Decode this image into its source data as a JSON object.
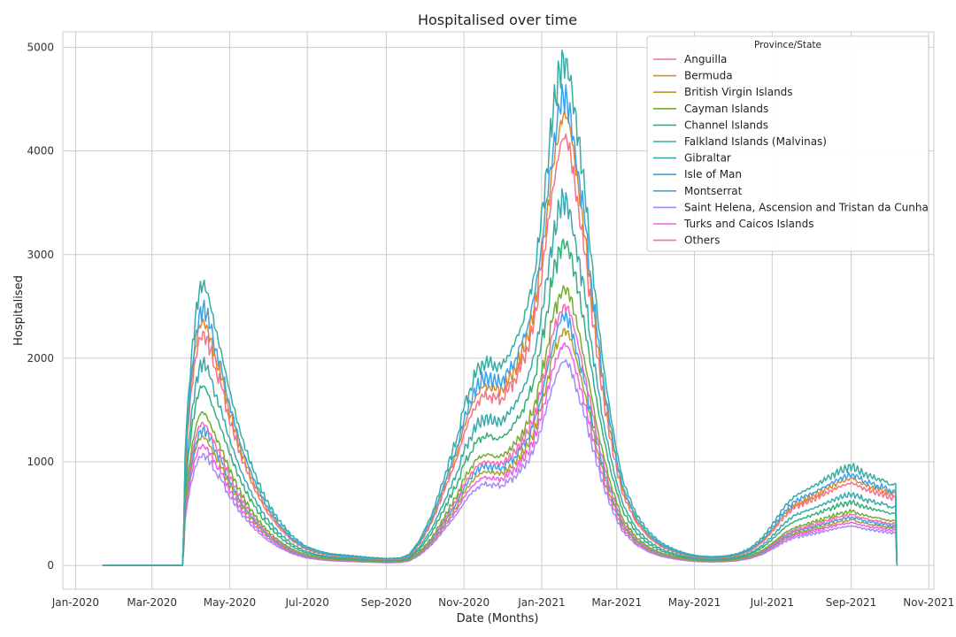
{
  "chart_data": {
    "type": "line",
    "title": "Hospitalised over time",
    "xlabel": "Date (Months)",
    "ylabel": "Hospitalised",
    "ylim": [
      -230,
      5150
    ],
    "yticks": [
      0,
      1000,
      2000,
      3000,
      4000,
      5000
    ],
    "x_tick_labels": [
      "Jan-2020",
      "Mar-2020",
      "May-2020",
      "Jul-2020",
      "Sep-2020",
      "Nov-2020",
      "Jan-2021",
      "Mar-2021",
      "May-2021",
      "Jul-2021",
      "Sep-2021",
      "Nov-2021"
    ],
    "x_tick_days": [
      0,
      60,
      121,
      182,
      244,
      305,
      366,
      425,
      486,
      547,
      609,
      670
    ],
    "xlim_days": [
      -10,
      674
    ],
    "grid": true,
    "legend": {
      "title": "Province/State",
      "position": "top-right"
    },
    "x_days": [
      21,
      84,
      85,
      86,
      88,
      91,
      94,
      97,
      100,
      103,
      106,
      110,
      115,
      120,
      130,
      140,
      150,
      160,
      170,
      180,
      190,
      200,
      215,
      230,
      245,
      255,
      262,
      270,
      280,
      290,
      300,
      305,
      310,
      315,
      320,
      325,
      330,
      335,
      340,
      345,
      350,
      355,
      360,
      365,
      370,
      375,
      380,
      383,
      386,
      389,
      392,
      395,
      400,
      405,
      410,
      415,
      420,
      425,
      430,
      440,
      450,
      460,
      470,
      480,
      490,
      500,
      510,
      520,
      530,
      540,
      550,
      557,
      565,
      572,
      580,
      590,
      600,
      610,
      615,
      620,
      625,
      630,
      635,
      640,
      643,
      644,
      645
    ],
    "series": [
      {
        "name": "Anguilla",
        "color": "#f77189",
        "peak": 2260,
        "values": [
          0,
          0,
          350,
          900,
          1300,
          1700,
          2000,
          2200,
          2260,
          2200,
          2080,
          1900,
          1700,
          1450,
          1050,
          750,
          520,
          360,
          240,
          160,
          120,
          95,
          80,
          65,
          55,
          60,
          90,
          200,
          420,
          730,
          1050,
          1270,
          1430,
          1560,
          1630,
          1640,
          1600,
          1620,
          1690,
          1800,
          1930,
          2090,
          2350,
          2700,
          3200,
          3650,
          4000,
          4120,
          4090,
          3950,
          3700,
          3450,
          3000,
          2500,
          2000,
          1580,
          1220,
          920,
          680,
          420,
          270,
          180,
          130,
          95,
          75,
          70,
          75,
          95,
          140,
          230,
          370,
          480,
          560,
          600,
          640,
          700,
          760,
          800,
          760,
          740,
          710,
          700,
          680,
          650,
          660,
          660,
          0
        ]
      },
      {
        "name": "Bermuda",
        "color": "#dc8932",
        "peak": 2380,
        "values": [
          0,
          0,
          370,
          950,
          1370,
          1790,
          2100,
          2320,
          2380,
          2320,
          2190,
          2000,
          1790,
          1530,
          1100,
          790,
          550,
          380,
          250,
          170,
          125,
          100,
          85,
          70,
          60,
          65,
          95,
          210,
          440,
          770,
          1110,
          1340,
          1510,
          1650,
          1720,
          1730,
          1690,
          1710,
          1780,
          1900,
          2040,
          2200,
          2480,
          2850,
          3380,
          3850,
          4220,
          4350,
          4320,
          4170,
          3900,
          3640,
          3170,
          2640,
          2110,
          1670,
          1290,
          970,
          720,
          440,
          285,
          190,
          135,
          100,
          80,
          74,
          80,
          100,
          148,
          243,
          390,
          507,
          590,
          630,
          675,
          740,
          800,
          845,
          800,
          780,
          750,
          740,
          720,
          690,
          700,
          700,
          0
        ]
      },
      {
        "name": "British Virgin Islands",
        "color": "#ae9d31",
        "peak": 1250,
        "values": [
          0,
          0,
          200,
          500,
          720,
          940,
          1110,
          1220,
          1250,
          1220,
          1150,
          1050,
          940,
          800,
          580,
          420,
          290,
          200,
          130,
          90,
          66,
          53,
          45,
          37,
          31,
          33,
          50,
          110,
          230,
          400,
          580,
          700,
          790,
          860,
          900,
          905,
          885,
          895,
          930,
          995,
          1070,
          1155,
          1300,
          1490,
          1770,
          2020,
          2210,
          2280,
          2260,
          2180,
          2040,
          1900,
          1660,
          1380,
          1100,
          870,
          670,
          510,
          375,
          230,
          150,
          100,
          72,
          52,
          41,
          39,
          41,
          52,
          77,
          127,
          204,
          265,
          309,
          331,
          353,
          386,
          419,
          442,
          419,
          408,
          392,
          386,
          375,
          359,
          364,
          364,
          0
        ]
      },
      {
        "name": "Cayman Islands",
        "color": "#77ab31",
        "peak": 1480,
        "values": [
          0,
          0,
          230,
          590,
          850,
          1110,
          1310,
          1440,
          1480,
          1440,
          1360,
          1240,
          1110,
          950,
          690,
          490,
          340,
          235,
          157,
          105,
          78,
          62,
          52,
          43,
          36,
          39,
          59,
          130,
          270,
          475,
          690,
          830,
          935,
          1020,
          1065,
          1070,
          1045,
          1060,
          1105,
          1175,
          1260,
          1365,
          1540,
          1770,
          2100,
          2390,
          2620,
          2700,
          2680,
          2590,
          2420,
          2260,
          1960,
          1640,
          1310,
          1035,
          800,
          600,
          445,
          275,
          177,
          118,
          85,
          62,
          49,
          46,
          49,
          62,
          92,
          150,
          242,
          314,
          366,
          393,
          419,
          458,
          497,
          524,
          497,
          484,
          465,
          458,
          445,
          425,
          432,
          432,
          0
        ]
      },
      {
        "name": "Channel Islands",
        "color": "#33b07a",
        "peak": 1730,
        "values": [
          0,
          0,
          270,
          690,
          1000,
          1300,
          1530,
          1680,
          1730,
          1680,
          1590,
          1450,
          1300,
          1110,
          800,
          575,
          400,
          275,
          183,
          122,
          92,
          73,
          61,
          50,
          42,
          46,
          69,
          153,
          320,
          560,
          800,
          970,
          1090,
          1190,
          1245,
          1250,
          1220,
          1235,
          1290,
          1375,
          1475,
          1595,
          1800,
          2060,
          2450,
          2790,
          3060,
          3150,
          3130,
          3020,
          2830,
          2640,
          2290,
          1910,
          1530,
          1210,
          930,
          700,
          520,
          320,
          206,
          138,
          99,
          73,
          57,
          53,
          57,
          73,
          107,
          176,
          283,
          367,
          428,
          459,
          489,
          535,
          581,
          611,
          581,
          566,
          543,
          535,
          520,
          497,
          504,
          504,
          0
        ]
      },
      {
        "name": "Falkland Islands (Malvinas)",
        "color": "#36ada4",
        "peak": 2700,
        "values": [
          0,
          0,
          420,
          1080,
          1550,
          2030,
          2390,
          2630,
          2700,
          2630,
          2490,
          2270,
          2030,
          1730,
          1250,
          900,
          620,
          430,
          285,
          190,
          143,
          113,
          96,
          78,
          66,
          72,
          107,
          240,
          500,
          870,
          1260,
          1520,
          1710,
          1870,
          1950,
          1960,
          1910,
          1940,
          2020,
          2150,
          2310,
          2500,
          2810,
          3230,
          3830,
          4360,
          4780,
          4920,
          4890,
          4730,
          4420,
          4130,
          3590,
          2990,
          2390,
          1890,
          1460,
          1100,
          810,
          500,
          323,
          215,
          155,
          113,
          90,
          84,
          90,
          113,
          167,
          275,
          443,
          575,
          670,
          718,
          766,
          838,
          910,
          958,
          910,
          886,
          850,
          838,
          814,
          778,
          790,
          790,
          0
        ]
      },
      {
        "name": "Gibraltar",
        "color": "#38aaac",
        "peak": 1950,
        "values": [
          0,
          0,
          300,
          780,
          1120,
          1470,
          1730,
          1900,
          1950,
          1900,
          1800,
          1640,
          1470,
          1250,
          905,
          650,
          450,
          310,
          206,
          138,
          103,
          82,
          69,
          56,
          48,
          52,
          77,
          173,
          360,
          630,
          910,
          1100,
          1235,
          1350,
          1410,
          1415,
          1380,
          1400,
          1460,
          1555,
          1670,
          1800,
          2030,
          2330,
          2770,
          3150,
          3450,
          3550,
          3530,
          3410,
          3190,
          2980,
          2590,
          2160,
          1720,
          1360,
          1050,
          795,
          585,
          360,
          233,
          155,
          112,
          82,
          65,
          61,
          65,
          82,
          120,
          198,
          320,
          415,
          484,
          518,
          553,
          605,
          657,
          691,
          657,
          639,
          614,
          605,
          588,
          562,
          570,
          570,
          0
        ]
      },
      {
        "name": "Isle of Man",
        "color": "#3ba3ec",
        "peak": 2490,
        "values": [
          0,
          0,
          390,
          1000,
          1430,
          1870,
          2200,
          2420,
          2490,
          2420,
          2290,
          2090,
          1870,
          1600,
          1150,
          830,
          575,
          395,
          262,
          176,
          132,
          104,
          88,
          72,
          61,
          66,
          99,
          220,
          460,
          800,
          1160,
          1400,
          1580,
          1720,
          1800,
          1810,
          1760,
          1790,
          1860,
          1980,
          2130,
          2300,
          2590,
          2980,
          3530,
          4020,
          4400,
          4530,
          4500,
          4360,
          4070,
          3800,
          3300,
          2750,
          2200,
          1740,
          1345,
          1010,
          745,
          460,
          297,
          198,
          143,
          104,
          83,
          77,
          83,
          104,
          154,
          253,
          408,
          529,
          617,
          661,
          705,
          771,
          837,
          882,
          837,
          816,
          782,
          771,
          749,
          716,
          727,
          727,
          0
        ]
      },
      {
        "name": "Montserrat",
        "color": "#3ba3ec",
        "peak": 1320,
        "values": [
          0,
          0,
          205,
          530,
          760,
          990,
          1170,
          1290,
          1320,
          1290,
          1220,
          1110,
          990,
          845,
          610,
          440,
          305,
          210,
          139,
          93,
          70,
          55,
          47,
          38,
          32,
          35,
          52,
          117,
          245,
          425,
          615,
          745,
          840,
          915,
          955,
          960,
          935,
          950,
          990,
          1050,
          1130,
          1220,
          1375,
          1580,
          1870,
          2130,
          2330,
          2400,
          2385,
          2310,
          2160,
          2015,
          1750,
          1460,
          1165,
          920,
          713,
          535,
          395,
          244,
          157,
          105,
          76,
          55,
          44,
          41,
          44,
          55,
          82,
          134,
          216,
          280,
          327,
          350,
          374,
          409,
          444,
          467,
          444,
          432,
          415,
          409,
          397,
          379,
          385,
          385,
          0
        ]
      },
      {
        "name": "Saint Helena, Ascension and Tristan da Cunha",
        "color": "#a48cf4",
        "peak": 1080,
        "values": [
          0,
          0,
          170,
          430,
          620,
          810,
          955,
          1050,
          1080,
          1050,
          995,
          905,
          810,
          690,
          500,
          360,
          248,
          172,
          114,
          76,
          57,
          45,
          38,
          31,
          26,
          29,
          43,
          96,
          200,
          350,
          505,
          605,
          685,
          745,
          780,
          785,
          765,
          775,
          808,
          860,
          925,
          1000,
          1125,
          1290,
          1530,
          1740,
          1910,
          1965,
          1950,
          1890,
          1765,
          1650,
          1430,
          1195,
          955,
          755,
          584,
          438,
          324,
          200,
          129,
          86,
          62,
          45,
          36,
          34,
          36,
          45,
          67,
          110,
          177,
          230,
          268,
          287,
          306,
          335,
          364,
          383,
          364,
          354,
          340,
          335,
          325,
          311,
          316,
          316,
          0
        ]
      },
      {
        "name": "Turks and Caicos Islands",
        "color": "#f45deb",
        "peak": 1170,
        "values": [
          0,
          0,
          180,
          470,
          670,
          880,
          1035,
          1140,
          1170,
          1140,
          1080,
          985,
          880,
          750,
          540,
          390,
          270,
          186,
          123,
          83,
          62,
          49,
          42,
          34,
          29,
          31,
          46,
          104,
          217,
          378,
          545,
          660,
          740,
          808,
          845,
          850,
          828,
          840,
          875,
          932,
          1000,
          1083,
          1220,
          1400,
          1660,
          1890,
          2070,
          2130,
          2115,
          2045,
          1915,
          1785,
          1550,
          1295,
          1035,
          815,
          632,
          475,
          350,
          216,
          140,
          93,
          67,
          49,
          39,
          36,
          39,
          49,
          72,
          119,
          192,
          249,
          290,
          311,
          331,
          363,
          394,
          414,
          394,
          383,
          368,
          363,
          352,
          337,
          342,
          342,
          0
        ]
      },
      {
        "name": "Others",
        "color": "#f66bb3",
        "peak": 1380,
        "values": [
          0,
          0,
          215,
          550,
          790,
          1035,
          1220,
          1345,
          1380,
          1345,
          1270,
          1160,
          1035,
          885,
          640,
          460,
          318,
          220,
          146,
          97,
          73,
          58,
          49,
          40,
          34,
          37,
          55,
          122,
          255,
          445,
          645,
          778,
          875,
          955,
          997,
          1000,
          977,
          990,
          1032,
          1100,
          1180,
          1277,
          1440,
          1650,
          1960,
          2230,
          2440,
          2510,
          2495,
          2415,
          2260,
          2110,
          1830,
          1530,
          1220,
          965,
          745,
          560,
          415,
          256,
          165,
          110,
          79,
          58,
          46,
          43,
          46,
          58,
          85,
          141,
          227,
          294,
          343,
          367,
          391,
          428,
          465,
          489,
          465,
          453,
          434,
          428,
          416,
          397,
          403,
          403,
          0
        ]
      }
    ]
  }
}
